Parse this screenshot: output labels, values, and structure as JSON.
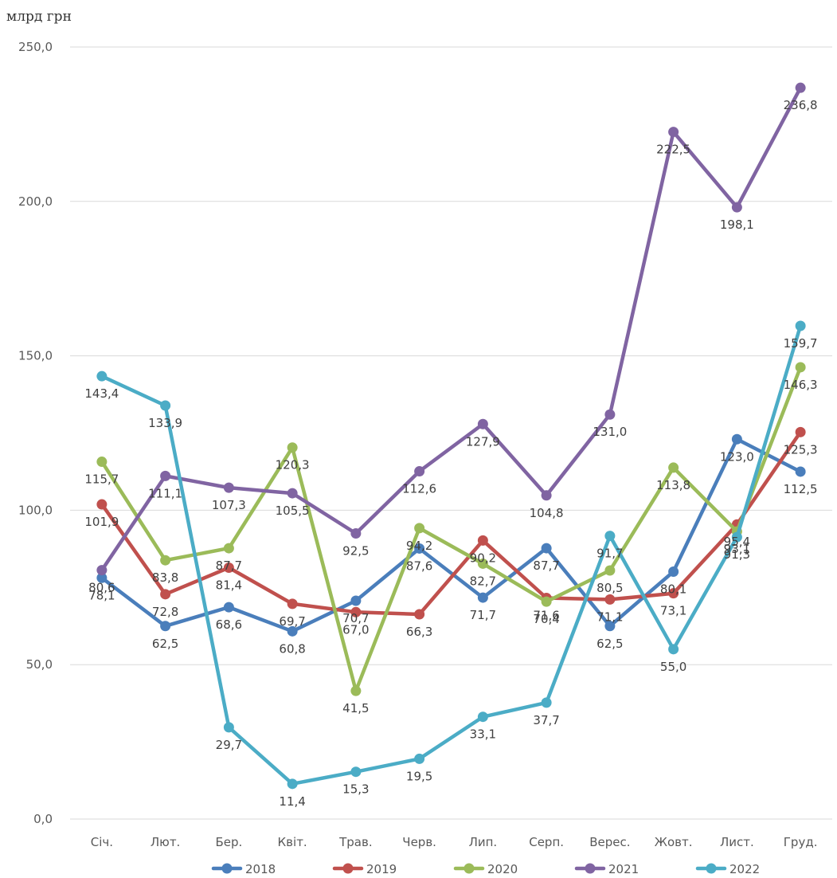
{
  "chart_data": {
    "type": "line",
    "ylabel": "млрд грн",
    "xlabel": "",
    "title": "",
    "ylim": [
      0,
      250
    ],
    "yticks": [
      "0,0",
      "50,0",
      "100,0",
      "150,0",
      "200,0",
      "250,0"
    ],
    "categories": [
      "Січ.",
      "Лют.",
      "Бер.",
      "Квіт.",
      "Трав.",
      "Черв.",
      "Лип.",
      "Серп.",
      "Верес.",
      "Жовт.",
      "Лист.",
      "Груд."
    ],
    "grid": true,
    "legend_position": "bottom",
    "series": [
      {
        "name": "2018",
        "color": "#4a7ebb",
        "values": [
          78.1,
          62.5,
          68.6,
          60.8,
          70.7,
          87.6,
          71.7,
          87.7,
          62.5,
          80.1,
          123.0,
          112.5
        ],
        "labels": [
          "78,1",
          "62,5",
          "68,6",
          "60,8",
          "70,7",
          "87,6",
          "71,7",
          "87,7",
          "62,5",
          "80,1",
          "123,0",
          "112,5"
        ]
      },
      {
        "name": "2019",
        "color": "#c0504d",
        "values": [
          101.9,
          72.8,
          81.4,
          69.7,
          67.0,
          66.3,
          90.2,
          71.6,
          71.1,
          73.1,
          95.4,
          125.3
        ],
        "labels": [
          "101,9",
          "72,8",
          "81,4",
          "69,7",
          "67,0",
          "66,3",
          "90,2",
          "71,6",
          "71,1",
          "73,1",
          "95,4",
          "125,3"
        ]
      },
      {
        "name": "2020",
        "color": "#9bbb59",
        "values": [
          115.7,
          83.8,
          87.7,
          120.3,
          41.5,
          94.2,
          82.7,
          70.4,
          80.5,
          113.8,
          93.1,
          146.3
        ],
        "labels": [
          "115,7",
          "83,8",
          "87,7",
          "120,3",
          "41,5",
          "94,2",
          "82,7",
          "70,4",
          "80,5",
          "113,8",
          "93,1",
          "146,3"
        ]
      },
      {
        "name": "2021",
        "color": "#8064a2",
        "values": [
          80.6,
          111.1,
          107.3,
          105.5,
          92.5,
          112.6,
          127.9,
          104.8,
          131.0,
          222.5,
          198.1,
          236.8
        ],
        "labels": [
          "80,6",
          "111,1",
          "107,3",
          "105,5",
          "92,5",
          "112,6",
          "127,9",
          "104,8",
          "131,0",
          "222,5",
          "198,1",
          "236,8"
        ]
      },
      {
        "name": "2022",
        "color": "#4bacc6",
        "values": [
          143.4,
          133.9,
          29.7,
          11.4,
          15.3,
          19.5,
          33.1,
          37.7,
          91.7,
          55.0,
          91.3,
          159.7
        ],
        "labels": [
          "143,4",
          "133,9",
          "29,7",
          "11,4",
          "15,3",
          "19,5",
          "33,1",
          "37,7",
          "91,7",
          "55,0",
          "91,3",
          "159,7"
        ]
      }
    ]
  }
}
